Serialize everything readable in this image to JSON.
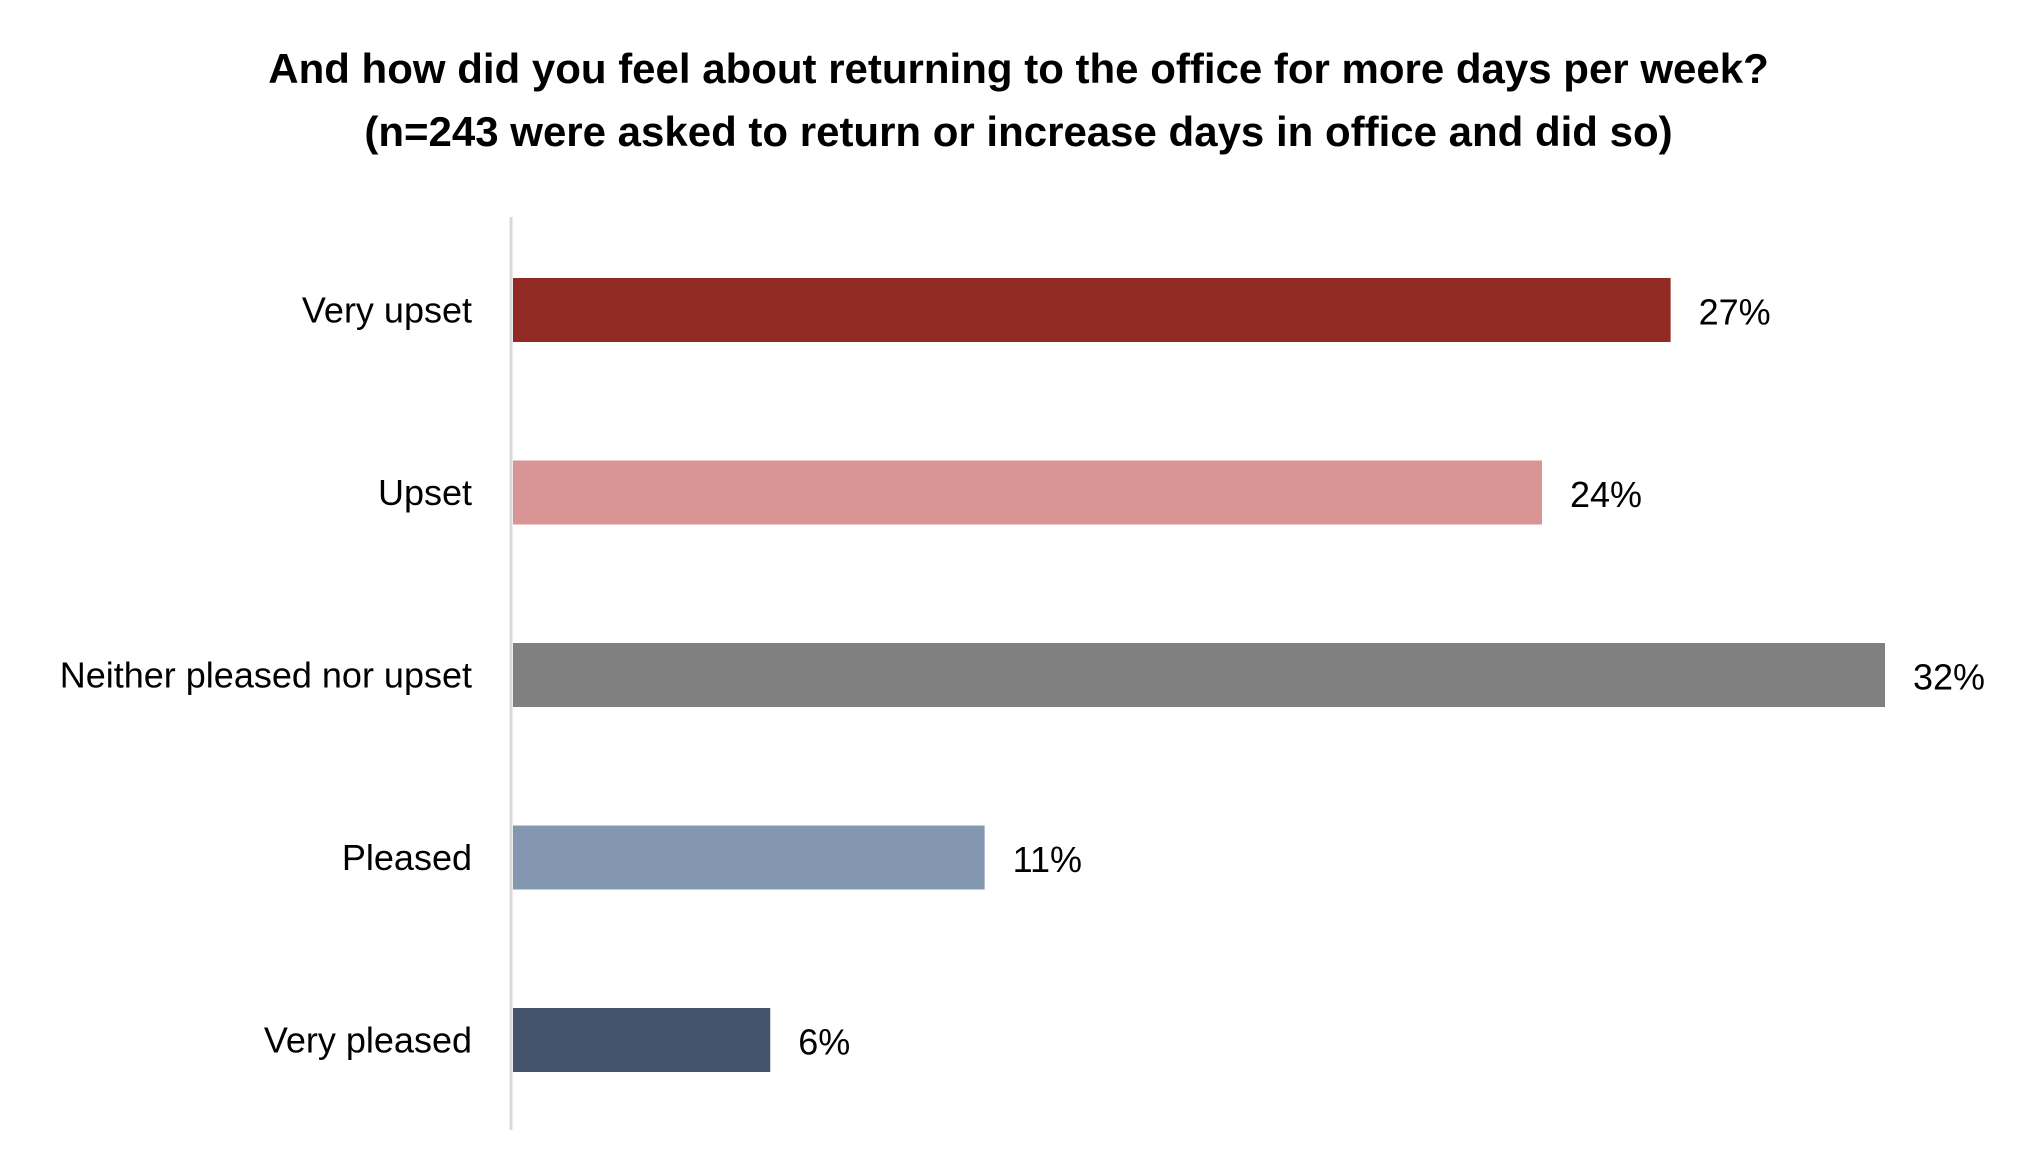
{
  "chart_data": {
    "type": "bar",
    "orientation": "horizontal",
    "title_lines": [
      "And how did you feel about returning to the office for more days per week?",
      "(n=243 were asked to return or increase days in office and did so)"
    ],
    "categories": [
      "Very upset",
      "Upset",
      "Neither pleased nor upset",
      "Pleased",
      "Very pleased"
    ],
    "values": [
      27,
      24,
      32,
      11,
      6
    ],
    "value_labels": [
      "27%",
      "24%",
      "32%",
      "11%",
      "6%"
    ],
    "colors": [
      "#922A24",
      "#D99594",
      "#808080",
      "#8497B0",
      "#44546A"
    ],
    "unit": "%",
    "xlim": [
      0,
      32
    ],
    "grid": false,
    "legend": "none",
    "axis_line_color": "#D9D9D9"
  }
}
